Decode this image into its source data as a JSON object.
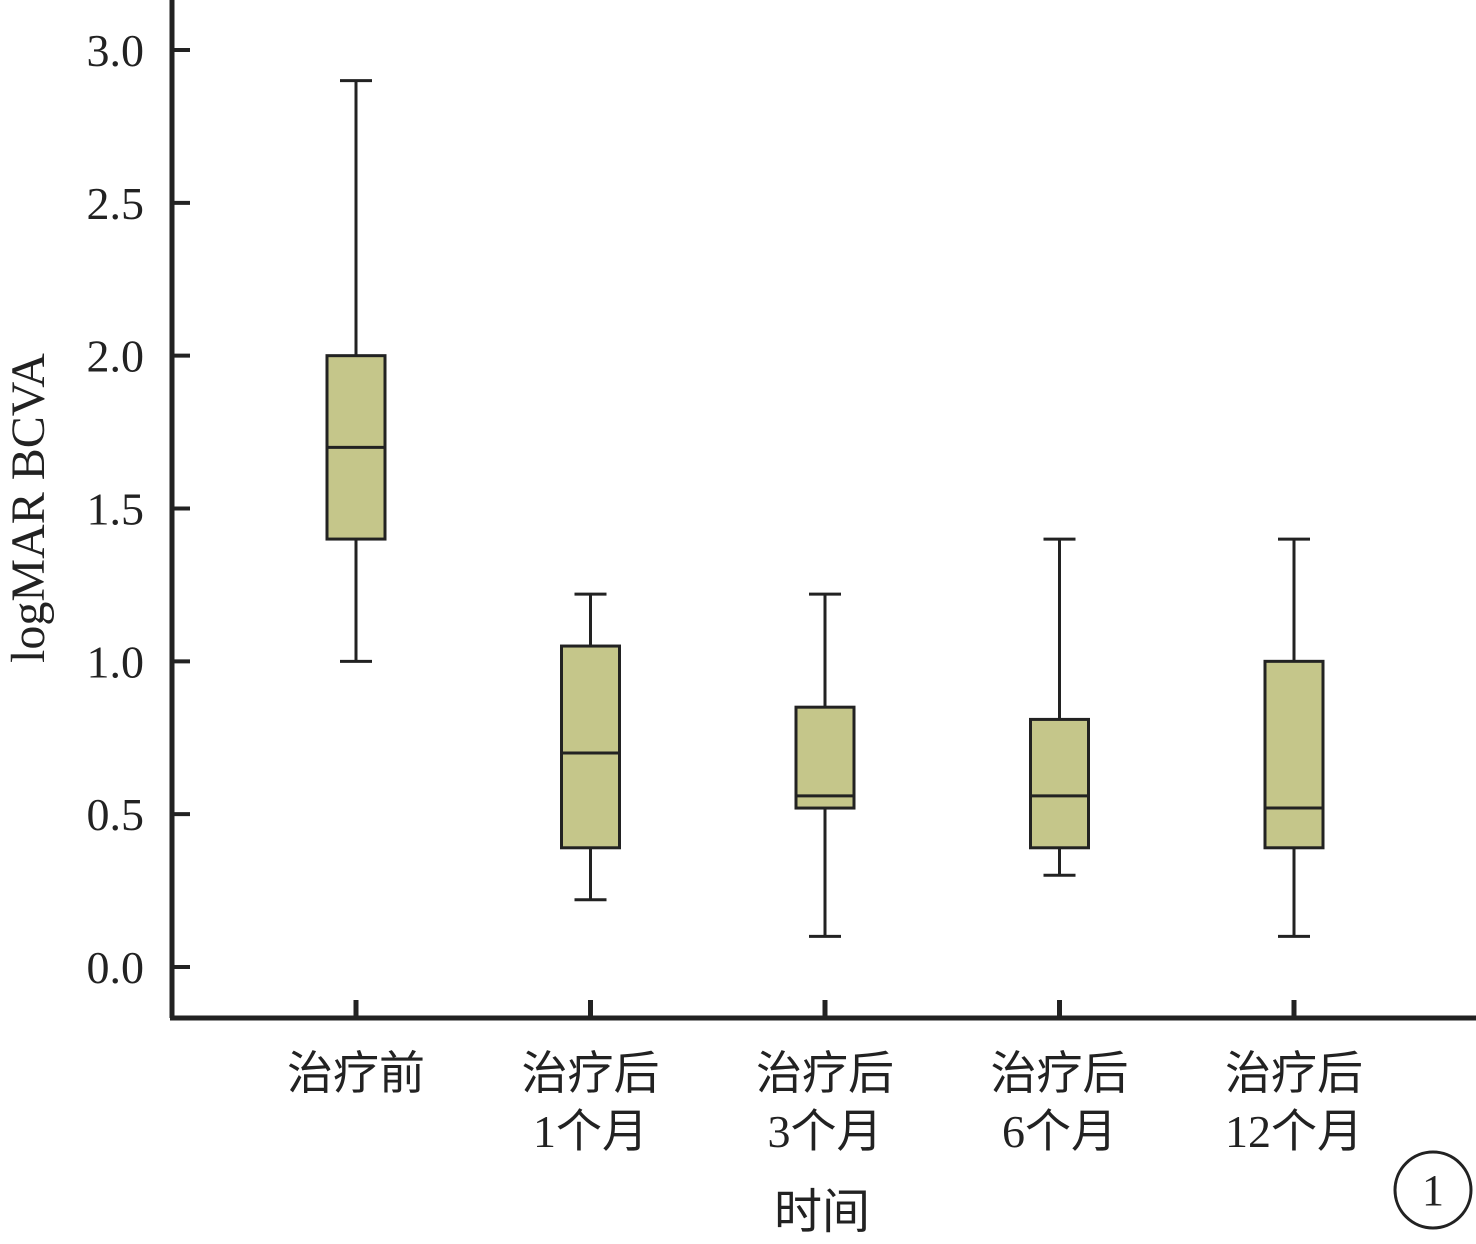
{
  "figure_number": "1",
  "colors": {
    "box_fill": "#c5c68a",
    "stroke": "#222222",
    "background": "#ffffff"
  },
  "chart_data": {
    "type": "box",
    "title": "",
    "xlabel": "时间",
    "ylabel": "logMAR BCVA",
    "ylim": [
      -0.17,
      3.15
    ],
    "yticks": [
      0.0,
      0.5,
      1.0,
      1.5,
      2.0,
      2.5,
      3.0
    ],
    "ytick_labels": [
      "0.0",
      "0.5",
      "1.0",
      "1.5",
      "2.0",
      "2.5",
      "3.0"
    ],
    "grid": false,
    "legend": "none",
    "categories": [
      {
        "lines": [
          "治疗前"
        ],
        "min": 1.0,
        "q1": 1.4,
        "median": 1.7,
        "q3": 2.0,
        "max": 2.9
      },
      {
        "lines": [
          "治疗后",
          "1个月"
        ],
        "min": 0.22,
        "q1": 0.39,
        "median": 0.7,
        "q3": 1.05,
        "max": 1.22
      },
      {
        "lines": [
          "治疗后",
          "3个月"
        ],
        "min": 0.1,
        "q1": 0.52,
        "median": 0.56,
        "q3": 0.85,
        "max": 1.22
      },
      {
        "lines": [
          "治疗后",
          "6个月"
        ],
        "min": 0.3,
        "q1": 0.39,
        "median": 0.56,
        "q3": 0.81,
        "max": 1.4
      },
      {
        "lines": [
          "治疗后",
          "12个月"
        ],
        "min": 0.1,
        "q1": 0.39,
        "median": 0.52,
        "q3": 1.0,
        "max": 1.4
      }
    ]
  }
}
